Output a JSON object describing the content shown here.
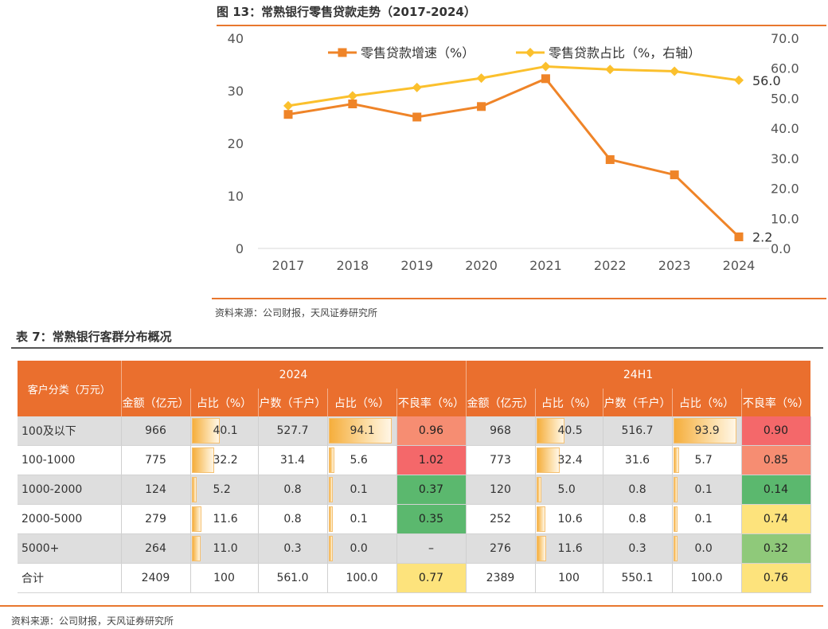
{
  "figure": {
    "title": "图 13：常熟银行零售贷款走势（2017-2024）",
    "source": "资料来源：公司财报，天风证券研究所"
  },
  "chart_data": {
    "type": "line",
    "categories": [
      "2017",
      "2018",
      "2019",
      "2020",
      "2021",
      "2022",
      "2023",
      "2024"
    ],
    "series": [
      {
        "name": "零售贷款增速（%）",
        "axis": "left",
        "color": "#ef8428",
        "marker": "square",
        "values": [
          25.5,
          27.5,
          25.0,
          27.0,
          32.3,
          16.9,
          14.0,
          2.2
        ]
      },
      {
        "name": "零售贷款占比（%，右轴）",
        "axis": "right",
        "color": "#fbc02d",
        "marker": "diamond",
        "values": [
          47.5,
          50.8,
          53.6,
          56.7,
          60.6,
          59.6,
          59.0,
          56.0
        ]
      }
    ],
    "y_left": {
      "min": 0,
      "max": 40,
      "ticks": [
        "0",
        "10",
        "20",
        "30",
        "40"
      ]
    },
    "y_right": {
      "min": 0,
      "max": 70,
      "ticks": [
        "0.0",
        "10.0",
        "20.0",
        "30.0",
        "40.0",
        "50.0",
        "60.0",
        "70.0"
      ]
    },
    "data_labels": {
      "series0_last": "2.2",
      "series1_last": "56.0"
    },
    "legend_position": "top",
    "grid": false
  },
  "table": {
    "title": "表 7：常熟银行客群分布概况",
    "lead_header": "客户分类（万元）",
    "periods": [
      "2024",
      "24H1"
    ],
    "columns": [
      "金额（亿元）",
      "占比（%）",
      "户数（千户）",
      "占比（%）",
      "不良率（%）"
    ],
    "rows": [
      {
        "cat": "100及以下",
        "p1": [
          "966",
          "40.1",
          "527.7",
          "94.1",
          "0.96"
        ],
        "p2": [
          "968",
          "40.5",
          "516.7",
          "93.9",
          "0.90"
        ]
      },
      {
        "cat": "100-1000",
        "p1": [
          "775",
          "32.2",
          "31.4",
          "5.6",
          "1.02"
        ],
        "p2": [
          "773",
          "32.4",
          "31.6",
          "5.7",
          "0.85"
        ]
      },
      {
        "cat": "1000-2000",
        "p1": [
          "124",
          "5.2",
          "0.8",
          "0.1",
          "0.37"
        ],
        "p2": [
          "120",
          "5.0",
          "0.8",
          "0.1",
          "0.14"
        ]
      },
      {
        "cat": "2000-5000",
        "p1": [
          "279",
          "11.6",
          "0.8",
          "0.1",
          "0.35"
        ],
        "p2": [
          "252",
          "10.6",
          "0.8",
          "0.1",
          "0.74"
        ]
      },
      {
        "cat": "5000+",
        "p1": [
          "264",
          "11.0",
          "0.3",
          "0.0",
          "–"
        ],
        "p2": [
          "276",
          "11.6",
          "0.3",
          "0.0",
          "0.32"
        ]
      },
      {
        "cat": "合计",
        "p1": [
          "2409",
          "100",
          "561.0",
          "100.0",
          "0.77"
        ],
        "p2": [
          "2389",
          "100",
          "550.1",
          "100.0",
          "0.76"
        ]
      }
    ],
    "npl_colors": {
      "p1": [
        "#f68d72",
        "#f4686a",
        "#5bb86e",
        "#5bb86e",
        "",
        "#fde37c"
      ],
      "p2": [
        "#f4686a",
        "#f68d72",
        "#5bb86e",
        "#fde37c",
        "#8fc97a",
        "#fde37c"
      ]
    },
    "source": "资料来源：公司财报，天风证券研究所"
  }
}
